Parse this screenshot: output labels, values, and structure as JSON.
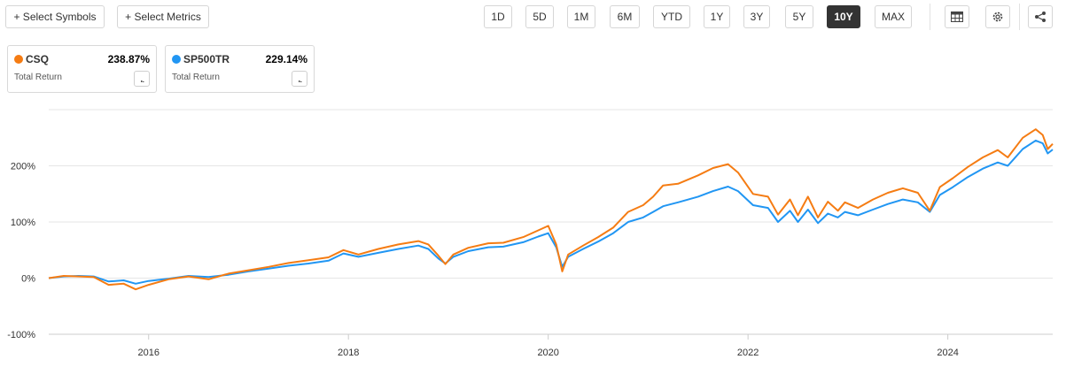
{
  "toolbar": {
    "select_symbols": "+ Select Symbols",
    "select_metrics": "+ Select Metrics",
    "ranges": [
      "1D",
      "5D",
      "1M",
      "6M",
      "YTD",
      "1Y",
      "3Y",
      "5Y",
      "10Y",
      "MAX"
    ],
    "active_range": "10Y",
    "icons": [
      "table-icon",
      "gear-icon",
      "share-icon"
    ]
  },
  "legend": [
    {
      "symbol": "CSQ",
      "value": "238.87%",
      "subtitle": "Total Return",
      "color": "#f57c13"
    },
    {
      "symbol": "SP500TR",
      "value": "229.14%",
      "subtitle": "Total Return",
      "color": "#2196f3"
    }
  ],
  "chart_data": {
    "type": "line",
    "xlabel": "",
    "ylabel": "",
    "x_range": [
      2015.0,
      2025.05
    ],
    "ylim": [
      -100,
      300
    ],
    "y_ticks": [
      200,
      100,
      0,
      -100
    ],
    "y_tick_labels": [
      "200%",
      "100%",
      "0%",
      "-100%"
    ],
    "x_ticks": [
      2016,
      2018,
      2020,
      2022,
      2024
    ],
    "x_tick_labels": [
      "2016",
      "2018",
      "2020",
      "2022",
      "2024"
    ],
    "grid": true,
    "series": [
      {
        "name": "CSQ",
        "color": "#f57c13",
        "points": [
          [
            2015.0,
            0
          ],
          [
            2015.15,
            4
          ],
          [
            2015.3,
            3
          ],
          [
            2015.45,
            2
          ],
          [
            2015.6,
            -12
          ],
          [
            2015.75,
            -10
          ],
          [
            2015.87,
            -20
          ],
          [
            2016.0,
            -12
          ],
          [
            2016.2,
            -2
          ],
          [
            2016.4,
            3
          ],
          [
            2016.6,
            -2
          ],
          [
            2016.8,
            8
          ],
          [
            2017.0,
            14
          ],
          [
            2017.2,
            20
          ],
          [
            2017.4,
            27
          ],
          [
            2017.6,
            32
          ],
          [
            2017.8,
            37
          ],
          [
            2017.95,
            50
          ],
          [
            2018.1,
            42
          ],
          [
            2018.3,
            52
          ],
          [
            2018.5,
            60
          ],
          [
            2018.7,
            66
          ],
          [
            2018.8,
            60
          ],
          [
            2018.9,
            40
          ],
          [
            2018.97,
            25
          ],
          [
            2019.05,
            42
          ],
          [
            2019.2,
            54
          ],
          [
            2019.4,
            62
          ],
          [
            2019.55,
            63
          ],
          [
            2019.75,
            73
          ],
          [
            2019.9,
            85
          ],
          [
            2020.0,
            93
          ],
          [
            2020.08,
            60
          ],
          [
            2020.14,
            12
          ],
          [
            2020.2,
            42
          ],
          [
            2020.35,
            58
          ],
          [
            2020.5,
            73
          ],
          [
            2020.65,
            90
          ],
          [
            2020.8,
            118
          ],
          [
            2020.95,
            130
          ],
          [
            2021.05,
            145
          ],
          [
            2021.15,
            165
          ],
          [
            2021.3,
            168
          ],
          [
            2021.5,
            183
          ],
          [
            2021.65,
            196
          ],
          [
            2021.8,
            203
          ],
          [
            2021.9,
            188
          ],
          [
            2022.05,
            150
          ],
          [
            2022.2,
            145
          ],
          [
            2022.3,
            113
          ],
          [
            2022.42,
            140
          ],
          [
            2022.5,
            112
          ],
          [
            2022.6,
            145
          ],
          [
            2022.7,
            108
          ],
          [
            2022.8,
            136
          ],
          [
            2022.9,
            120
          ],
          [
            2022.97,
            135
          ],
          [
            2023.1,
            125
          ],
          [
            2023.25,
            140
          ],
          [
            2023.4,
            152
          ],
          [
            2023.55,
            160
          ],
          [
            2023.7,
            152
          ],
          [
            2023.82,
            120
          ],
          [
            2023.92,
            162
          ],
          [
            2024.05,
            178
          ],
          [
            2024.2,
            198
          ],
          [
            2024.35,
            215
          ],
          [
            2024.5,
            228
          ],
          [
            2024.6,
            215
          ],
          [
            2024.75,
            250
          ],
          [
            2024.88,
            265
          ],
          [
            2024.95,
            255
          ],
          [
            2025.0,
            230
          ],
          [
            2025.05,
            239
          ]
        ]
      },
      {
        "name": "SP500TR",
        "color": "#2196f3",
        "points": [
          [
            2015.0,
            0
          ],
          [
            2015.15,
            3
          ],
          [
            2015.3,
            4
          ],
          [
            2015.45,
            3
          ],
          [
            2015.6,
            -6
          ],
          [
            2015.75,
            -4
          ],
          [
            2015.87,
            -10
          ],
          [
            2016.0,
            -5
          ],
          [
            2016.2,
            -1
          ],
          [
            2016.4,
            4
          ],
          [
            2016.6,
            2
          ],
          [
            2016.8,
            6
          ],
          [
            2017.0,
            12
          ],
          [
            2017.2,
            17
          ],
          [
            2017.4,
            22
          ],
          [
            2017.6,
            26
          ],
          [
            2017.8,
            31
          ],
          [
            2017.95,
            44
          ],
          [
            2018.1,
            38
          ],
          [
            2018.3,
            45
          ],
          [
            2018.5,
            52
          ],
          [
            2018.7,
            58
          ],
          [
            2018.8,
            52
          ],
          [
            2018.9,
            35
          ],
          [
            2018.97,
            26
          ],
          [
            2019.05,
            38
          ],
          [
            2019.2,
            48
          ],
          [
            2019.4,
            55
          ],
          [
            2019.55,
            56
          ],
          [
            2019.75,
            64
          ],
          [
            2019.9,
            74
          ],
          [
            2020.0,
            80
          ],
          [
            2020.08,
            55
          ],
          [
            2020.14,
            20
          ],
          [
            2020.2,
            38
          ],
          [
            2020.35,
            52
          ],
          [
            2020.5,
            65
          ],
          [
            2020.65,
            80
          ],
          [
            2020.8,
            100
          ],
          [
            2020.95,
            108
          ],
          [
            2021.05,
            118
          ],
          [
            2021.15,
            128
          ],
          [
            2021.3,
            135
          ],
          [
            2021.5,
            145
          ],
          [
            2021.65,
            155
          ],
          [
            2021.8,
            163
          ],
          [
            2021.9,
            155
          ],
          [
            2022.05,
            130
          ],
          [
            2022.2,
            125
          ],
          [
            2022.3,
            100
          ],
          [
            2022.42,
            120
          ],
          [
            2022.5,
            100
          ],
          [
            2022.6,
            122
          ],
          [
            2022.7,
            98
          ],
          [
            2022.8,
            115
          ],
          [
            2022.9,
            108
          ],
          [
            2022.97,
            118
          ],
          [
            2023.1,
            112
          ],
          [
            2023.25,
            122
          ],
          [
            2023.4,
            132
          ],
          [
            2023.55,
            140
          ],
          [
            2023.7,
            135
          ],
          [
            2023.82,
            118
          ],
          [
            2023.92,
            148
          ],
          [
            2024.05,
            162
          ],
          [
            2024.2,
            180
          ],
          [
            2024.35,
            195
          ],
          [
            2024.5,
            206
          ],
          [
            2024.6,
            200
          ],
          [
            2024.75,
            230
          ],
          [
            2024.88,
            245
          ],
          [
            2024.95,
            240
          ],
          [
            2025.0,
            222
          ],
          [
            2025.05,
            229
          ]
        ]
      }
    ]
  }
}
